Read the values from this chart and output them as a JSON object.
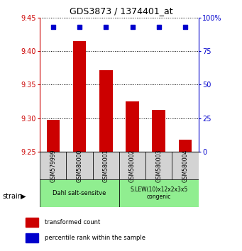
{
  "title": "GDS3873 / 1374401_at",
  "samples": [
    "GSM579999",
    "GSM580000",
    "GSM580001",
    "GSM580002",
    "GSM580003",
    "GSM580004"
  ],
  "bar_values": [
    9.298,
    9.415,
    9.372,
    9.325,
    9.313,
    9.268
  ],
  "percentile_values": [
    93,
    93,
    93,
    93,
    93,
    93
  ],
  "bar_color": "#cc0000",
  "percentile_color": "#0000cc",
  "ylim_left": [
    9.25,
    9.45
  ],
  "ylim_right": [
    0,
    100
  ],
  "yticks_left": [
    9.25,
    9.3,
    9.35,
    9.4,
    9.45
  ],
  "yticks_right": [
    0,
    25,
    50,
    75,
    100
  ],
  "ytick_labels_right": [
    "0",
    "25",
    "50",
    "75",
    "100%"
  ],
  "groups": [
    {
      "label": "Dahl salt-sensitve",
      "col_span": [
        0,
        3
      ],
      "color": "#90ee90"
    },
    {
      "label": "S.LEW(10)x12x2x3x5\ncongenic",
      "col_span": [
        3,
        6
      ],
      "color": "#90ee90"
    }
  ],
  "strain_label": "strain",
  "legend_items": [
    {
      "color": "#cc0000",
      "label": "transformed count"
    },
    {
      "color": "#0000cc",
      "label": "percentile rank within the sample"
    }
  ],
  "background_color": "#ffffff",
  "bar_bottom": 9.25,
  "grid_color": "#000000",
  "tick_color_left": "#cc0000",
  "tick_color_right": "#0000cc",
  "sample_box_color": "#d3d3d3"
}
